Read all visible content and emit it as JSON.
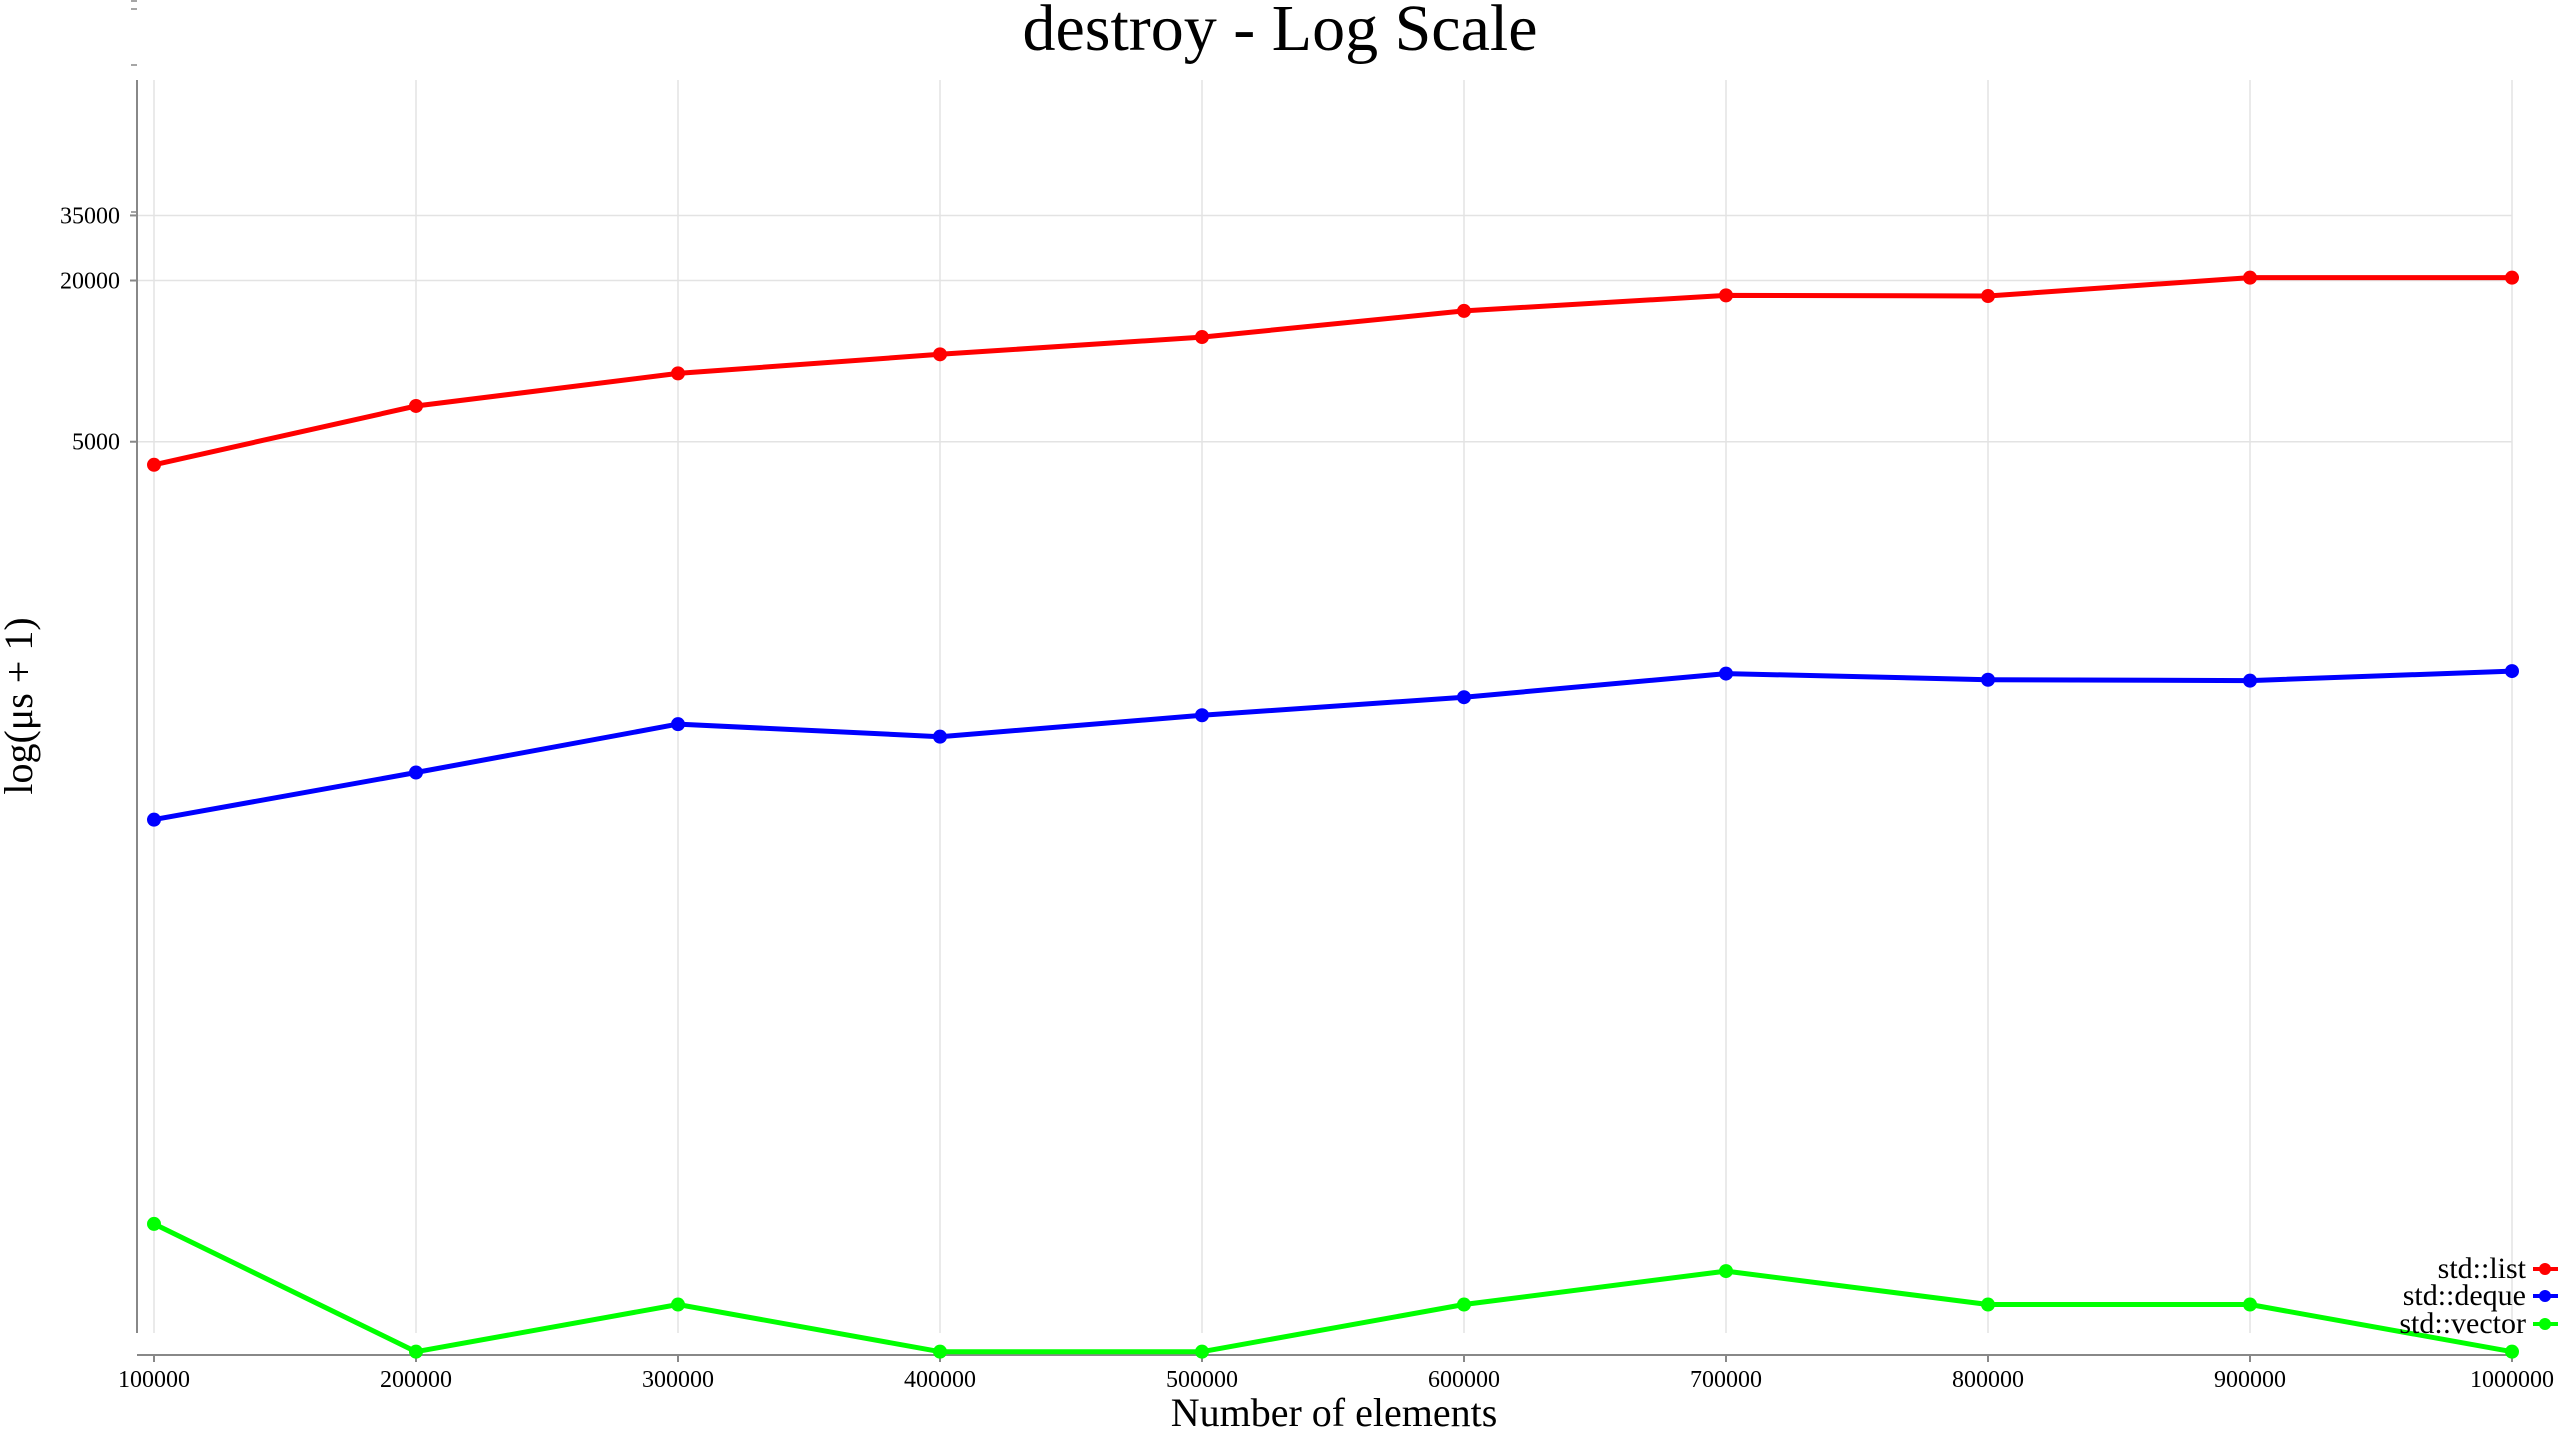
{
  "chart_data": {
    "type": "line",
    "title": "destroy - Log Scale",
    "xlabel": "Number of elements",
    "ylabel": "log(μs + 1)",
    "y_scale": "log",
    "grid": true,
    "legend_position": "bottom-right",
    "x": [
      100000,
      200000,
      300000,
      400000,
      500000,
      600000,
      700000,
      800000,
      900000,
      1000000
    ],
    "x_tick_labels": [
      "100000",
      "200000",
      "300000",
      "400000",
      "500000",
      "600000",
      "700000",
      "800000",
      "900000",
      "1000000"
    ],
    "y_ticks": [
      5000,
      20000,
      35000
    ],
    "y_tick_labels": [
      "5000",
      "20000",
      "35000"
    ],
    "series": [
      {
        "name": "std::list",
        "color": "#ff0000",
        "values": [
          4100,
          6800,
          9000,
          10600,
          12300,
          15400,
          17600,
          17500,
          20500,
          20500
        ]
      },
      {
        "name": "std::deque",
        "color": "#0000ff",
        "values": [
          193,
          290,
          440,
          395,
          475,
          555,
          680,
          645,
          640,
          695
        ]
      },
      {
        "name": "std::vector",
        "color": "#00ff00",
        "values": [
          5,
          1,
          2,
          1,
          1,
          2,
          3,
          2,
          2,
          1
        ]
      }
    ]
  }
}
